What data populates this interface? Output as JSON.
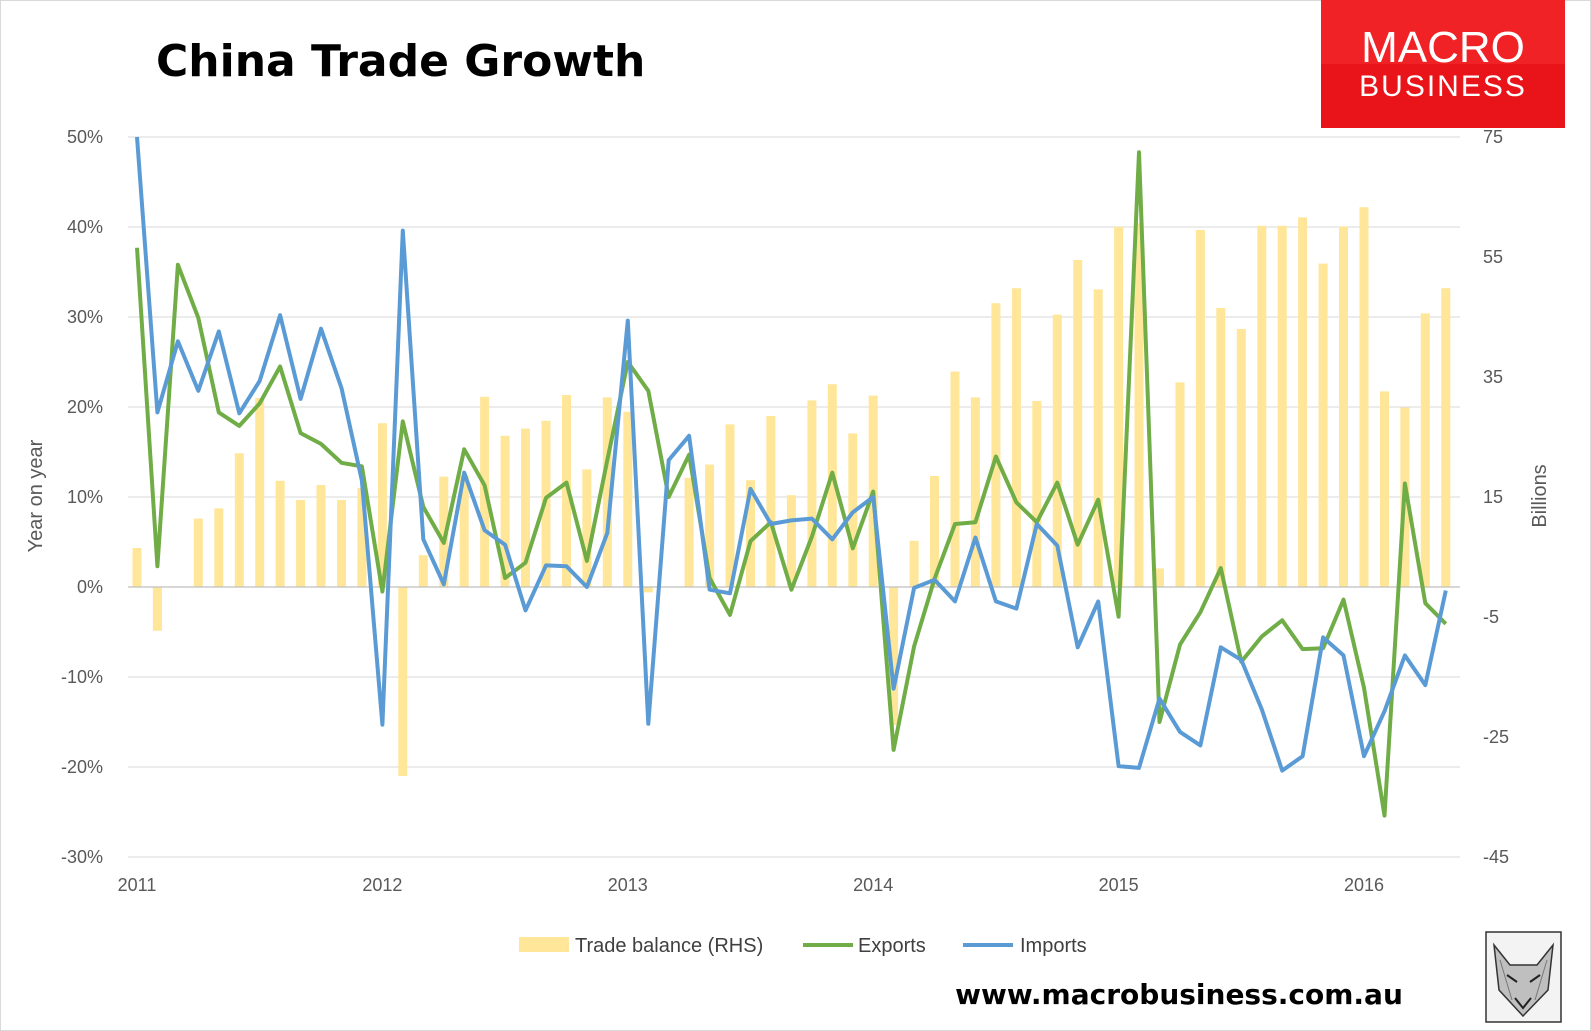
{
  "colors": {
    "trade_balance": "#FFE699",
    "exports": "#70AD47",
    "imports": "#5B9BD5",
    "logo_bg": "#E8141A"
  },
  "logo": {
    "line1": "MACRO",
    "line2": "BUSINESS"
  },
  "website": "www.macrobusiness.com.au",
  "corner_image": "fox-icon",
  "chart_data": {
    "type": "line",
    "title": "China Trade Growth",
    "ylabel": "Year on year",
    "y2label": "Billions",
    "ylim": [
      -30,
      50
    ],
    "y2lim": [
      -45,
      75
    ],
    "yticks": [
      "50%",
      "40%",
      "30%",
      "20%",
      "10%",
      "0%",
      "-10%",
      "-20%",
      "-30%"
    ],
    "y2ticks": [
      "75",
      "55",
      "35",
      "15",
      "-5",
      "-25",
      "-45"
    ],
    "xticks": [
      "2011",
      "2012",
      "2013",
      "2014",
      "2015",
      "2016"
    ],
    "grid": true,
    "legend_position": "bottom",
    "x_start": "2011-01",
    "x_step": "month",
    "series": [
      {
        "name": "Trade balance (RHS)",
        "type": "bar",
        "axis": "right",
        "values": [
          6.5,
          -7.3,
          0.1,
          11.4,
          13.1,
          22.3,
          31.5,
          17.7,
          14.5,
          17.0,
          14.5,
          16.5,
          27.3,
          -31.5,
          5.3,
          18.4,
          18.6,
          31.7,
          25.2,
          26.4,
          27.7,
          32.0,
          19.6,
          31.6,
          29.2,
          -0.9,
          0.0,
          18.2,
          20.4,
          27.1,
          17.8,
          28.5,
          15.3,
          31.1,
          33.8,
          25.6,
          31.9,
          -23.0,
          7.7,
          18.5,
          35.9,
          31.6,
          47.3,
          49.8,
          31.0,
          45.4,
          54.5,
          49.6,
          60.0,
          60.6,
          3.1,
          34.1,
          59.5,
          46.5,
          43.0,
          60.2,
          60.2,
          61.6,
          53.9,
          60.1,
          63.3,
          32.6,
          29.9,
          45.6,
          49.8
        ],
        "values_note": ""
      },
      {
        "name": "Exports",
        "type": "line",
        "axis": "left",
        "values": [
          37.7,
          2.3,
          35.8,
          29.9,
          19.4,
          17.9,
          20.4,
          24.5,
          17.1,
          15.9,
          13.8,
          13.4,
          -0.5,
          18.4,
          8.9,
          4.9,
          15.3,
          11.3,
          1.0,
          2.7,
          9.9,
          11.6,
          2.9,
          14.1,
          25.0,
          21.8,
          10.0,
          14.7,
          1.0,
          -3.1,
          5.1,
          7.2,
          -0.3,
          5.6,
          12.7,
          4.3,
          10.6,
          -18.1,
          -6.6,
          0.9,
          7.0,
          7.2,
          14.5,
          9.4,
          7.2,
          11.6,
          4.7,
          9.7,
          -3.3,
          48.3,
          -15.0,
          -6.4,
          -2.8,
          2.1,
          -8.3,
          -5.5,
          -3.7,
          -6.9,
          -6.8,
          -1.4,
          -11.2,
          -25.4,
          11.5,
          -1.8,
          -4.1
        ]
      },
      {
        "name": "Imports",
        "type": "line",
        "axis": "left",
        "values": [
          51.0,
          19.4,
          27.3,
          21.8,
          28.4,
          19.3,
          22.9,
          30.2,
          20.9,
          28.7,
          22.1,
          11.8,
          -15.3,
          39.6,
          5.3,
          0.3,
          12.7,
          6.3,
          4.7,
          -2.6,
          2.4,
          2.3,
          0.0,
          6.0,
          29.6,
          -15.2,
          14.1,
          16.8,
          -0.3,
          -0.7,
          10.9,
          7.0,
          7.4,
          7.6,
          5.3,
          8.3,
          10.0,
          -11.3,
          -0.1,
          0.8,
          -1.6,
          5.5,
          -1.6,
          -2.4,
          7.0,
          4.6,
          -6.7,
          -1.6,
          -19.9,
          -20.1,
          -12.4,
          -16.1,
          -17.6,
          -6.7,
          -8.1,
          -13.6,
          -20.4,
          -18.8,
          -5.6,
          -7.6,
          -18.8,
          -13.8,
          -7.6,
          -10.9,
          -0.4
        ]
      }
    ]
  }
}
